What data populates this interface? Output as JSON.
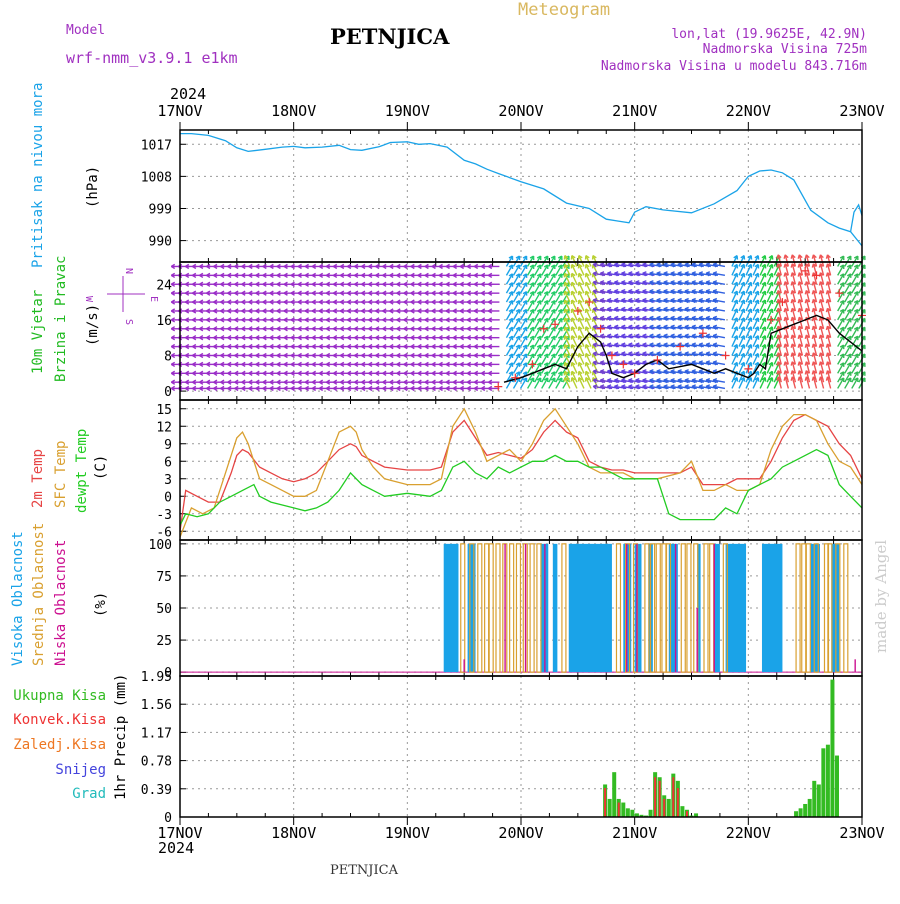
{
  "header": {
    "model_label": "Model",
    "model_name": "wrf-nmm_v3.9.1 e1km",
    "station": "PETNJICA",
    "title": "Meteogram",
    "coords": "lon,lat (19.9625E, 42.9N)",
    "elevation": "Nadmorska Visina 725m",
    "model_elevation": "Nadmorska Visina u modelu 843.716m",
    "year": "2024",
    "footer_station": "PETNJICA",
    "watermark": "made by Angel"
  },
  "colors": {
    "pressure": "#1aa3e8",
    "wind_label": "#22bb22",
    "wind_axis": "#a030c0",
    "temp2m": "#e64444",
    "sfc": "#d9a030",
    "dewpt": "#22cc22",
    "high_cloud": "#1aa3e8",
    "mid_cloud": "#d9a030",
    "low_cloud": "#cc1090",
    "total_precip": "#33bb22",
    "conv_precip": "#ee3333",
    "freezing": "#ee7722",
    "snow": "#4444dd",
    "hail": "#22bbbb",
    "frame": "#000000"
  },
  "chart_data": [
    {
      "type": "line",
      "id": "pressure",
      "ylabel": "Pritisak na nivou mora",
      "unit": "(hPa)",
      "ylim": [
        984,
        1021
      ],
      "yticks": [
        "990",
        "999",
        "1008",
        "1017"
      ],
      "ytick_values": [
        990,
        999,
        1008,
        1017
      ],
      "x_categories": [
        "17NOV",
        "18NOV",
        "19NOV",
        "20NOV",
        "21NOV",
        "22NOV",
        "23NOV"
      ],
      "grid": true,
      "series": [
        {
          "color": "#1aa3e8",
          "x": [
            0,
            0.1,
            0.25,
            0.4,
            0.5,
            0.6,
            0.75,
            0.9,
            1.0,
            1.1,
            1.25,
            1.4,
            1.5,
            1.6,
            1.75,
            1.85,
            2.0,
            2.1,
            2.2,
            2.35,
            2.5,
            2.6,
            2.7,
            2.8,
            3.0,
            3.2,
            3.4,
            3.6,
            3.75,
            3.85,
            3.95,
            4.0,
            4.1,
            4.25,
            4.5,
            4.7,
            4.9,
            5.0,
            5.1,
            5.2,
            5.3,
            5.4,
            5.55,
            5.7,
            5.8,
            5.9,
            6.0
          ],
          "y": [
            1020,
            1020,
            1019.5,
            1018,
            1016,
            1015,
            1015.6,
            1016.2,
            1016.4,
            1016,
            1016.2,
            1016.7,
            1015.5,
            1015.3,
            1016.3,
            1017.5,
            1017.7,
            1017,
            1017.2,
            1016.2,
            1012.5,
            1011.5,
            1010,
            1008.8,
            1006.5,
            1004.5,
            1000.5,
            999,
            996,
            995.5,
            995,
            998,
            999.5,
            998.6,
            997.8,
            1000.3,
            1004,
            1008,
            1009.5,
            1009.8,
            1009,
            1007,
            998.5,
            995,
            993.5,
            992.5,
            988.5
          ]
        },
        {
          "color": "#1aa3e8",
          "x": [
            5.9,
            5.93,
            5.97,
            6.0
          ],
          "y": [
            992.5,
            998,
            1000,
            997
          ]
        }
      ]
    },
    {
      "type": "line",
      "id": "wind",
      "ylabel": "10m Vjetar",
      "ylabel2": "Brzina i Pravac",
      "unit": "(m/s)",
      "compass": {
        "n": "N",
        "s": "S",
        "w": "W",
        "e": "E"
      },
      "ylim": [
        -2,
        29
      ],
      "yticks": [
        "0",
        "8",
        "16",
        "24"
      ],
      "ytick_values": [
        0,
        8,
        16,
        24
      ],
      "grid": true,
      "series": [
        {
          "name": "speed",
          "color": "#000000",
          "x": [
            2.85,
            3.0,
            3.1,
            3.2,
            3.3,
            3.4,
            3.5,
            3.6,
            3.7,
            3.75,
            3.8,
            3.9,
            4.0,
            4.1,
            4.2,
            4.3,
            4.5,
            4.6,
            4.7,
            4.8,
            4.9,
            5.0,
            5.05,
            5.1,
            5.15,
            5.2,
            5.3,
            5.4,
            5.5,
            5.6,
            5.7,
            5.8,
            5.9,
            6.0
          ],
          "y": [
            2,
            3,
            4,
            5,
            6,
            5,
            10,
            13,
            11,
            8,
            4,
            3,
            4,
            6,
            7,
            5,
            6,
            5,
            4,
            5,
            4,
            3,
            4,
            6,
            5,
            13,
            14,
            15,
            16,
            17,
            16,
            13,
            11,
            9
          ]
        },
        {
          "name": "gust",
          "color": "#ee3333",
          "x": [
            2.8,
            2.95,
            3.1,
            3.2,
            3.3,
            3.5,
            3.6,
            3.7,
            3.8,
            3.9,
            4.0,
            4.2,
            4.4,
            4.6,
            4.8,
            5.0,
            5.2,
            5.3,
            5.5,
            5.6,
            5.8,
            6.0
          ],
          "y": [
            1,
            3,
            6,
            14,
            15,
            18,
            20,
            14,
            8,
            6,
            4,
            7,
            10,
            13,
            8,
            5,
            16,
            20,
            27,
            26,
            22,
            17
          ]
        }
      ]
    },
    {
      "type": "line",
      "id": "temperature",
      "ylabels": [
        "2m Temp",
        "SFC Temp",
        "dewpt Temp"
      ],
      "unit": "(C)",
      "ylim": [
        -7.5,
        16.5
      ],
      "yticks": [
        "-6",
        "-3",
        "0",
        "3",
        "6",
        "9",
        "12",
        "15"
      ],
      "ytick_values": [
        -6,
        -3,
        0,
        3,
        6,
        9,
        12,
        15
      ],
      "grid": true,
      "series": [
        {
          "name": "2m Temp",
          "color": "#e64444",
          "x": [
            0,
            0.05,
            0.15,
            0.25,
            0.35,
            0.45,
            0.5,
            0.55,
            0.6,
            0.7,
            0.8,
            0.9,
            1.0,
            1.1,
            1.2,
            1.3,
            1.4,
            1.5,
            1.55,
            1.6,
            1.7,
            1.8,
            2.0,
            2.2,
            2.3,
            2.4,
            2.5,
            2.6,
            2.7,
            2.8,
            2.9,
            3.0,
            3.1,
            3.2,
            3.3,
            3.4,
            3.5,
            3.6,
            3.7,
            3.8,
            3.9,
            4.0,
            4.2,
            4.4,
            4.5,
            4.6,
            4.7,
            4.8,
            4.9,
            5.0,
            5.1,
            5.2,
            5.3,
            5.4,
            5.5,
            5.6,
            5.7,
            5.8,
            5.9,
            6.0
          ],
          "y": [
            -6,
            1,
            0,
            -1,
            -1,
            4,
            7,
            8,
            7.5,
            5,
            4,
            3,
            2.5,
            3,
            4,
            6,
            8,
            9,
            8.5,
            7,
            6,
            5,
            4.5,
            4.5,
            5,
            11,
            13,
            10,
            7,
            7.5,
            7,
            6.5,
            8,
            11,
            13,
            11,
            10,
            6,
            5,
            4.5,
            4.5,
            4,
            4,
            4,
            5,
            2,
            2,
            2,
            3,
            3,
            3,
            6,
            10,
            13,
            14,
            13,
            12,
            9,
            7,
            3
          ]
        },
        {
          "name": "SFC Temp",
          "color": "#d9a030",
          "x": [
            0,
            0.1,
            0.2,
            0.3,
            0.4,
            0.5,
            0.55,
            0.6,
            0.7,
            0.8,
            0.9,
            1.0,
            1.1,
            1.2,
            1.3,
            1.4,
            1.5,
            1.55,
            1.6,
            1.7,
            1.8,
            2.0,
            2.2,
            2.3,
            2.4,
            2.5,
            2.6,
            2.7,
            2.8,
            2.9,
            3.0,
            3.1,
            3.2,
            3.3,
            3.4,
            3.5,
            3.6,
            3.7,
            3.8,
            3.9,
            4.0,
            4.2,
            4.4,
            4.5,
            4.6,
            4.7,
            4.8,
            4.9,
            5.0,
            5.1,
            5.2,
            5.3,
            5.4,
            5.5,
            5.6,
            5.7,
            5.8,
            5.9,
            6.0
          ],
          "y": [
            -7,
            -2,
            -3,
            -2,
            4,
            10,
            11,
            9,
            3,
            2,
            1,
            0,
            0,
            1,
            6,
            11,
            12,
            11,
            8,
            5,
            3,
            2,
            2,
            3,
            12,
            15,
            11,
            6,
            7,
            8,
            6,
            9,
            13,
            15,
            12,
            9,
            5,
            4,
            4,
            4,
            3,
            3,
            4,
            6,
            1,
            1,
            2,
            1,
            1,
            2,
            8,
            12,
            14,
            14,
            13,
            9,
            6,
            5,
            2
          ]
        },
        {
          "name": "dewpt Temp",
          "color": "#22cc22",
          "x": [
            0,
            0.05,
            0.15,
            0.25,
            0.35,
            0.45,
            0.55,
            0.65,
            0.7,
            0.8,
            0.9,
            1.0,
            1.1,
            1.2,
            1.3,
            1.4,
            1.5,
            1.6,
            1.7,
            1.8,
            2.0,
            2.2,
            2.3,
            2.4,
            2.5,
            2.6,
            2.7,
            2.8,
            2.9,
            3.0,
            3.1,
            3.2,
            3.3,
            3.4,
            3.5,
            3.6,
            3.7,
            3.8,
            3.9,
            4.0,
            4.2,
            4.3,
            4.4,
            4.5,
            4.6,
            4.7,
            4.8,
            4.9,
            5.0,
            5.1,
            5.2,
            5.3,
            5.4,
            5.5,
            5.6,
            5.7,
            5.8,
            5.9,
            6.0
          ],
          "y": [
            -5,
            -3,
            -3.5,
            -3,
            -1,
            0,
            1,
            2,
            0,
            -1,
            -1.5,
            -2,
            -2.5,
            -2,
            -1,
            1,
            4,
            2,
            1,
            0,
            0.5,
            0,
            1,
            5,
            6,
            4,
            3,
            5,
            4,
            5,
            6,
            6,
            7,
            6,
            6,
            5,
            5,
            4,
            3,
            3,
            3,
            -3,
            -4,
            -4,
            -4,
            -4,
            -2,
            -3,
            1,
            2,
            3,
            5,
            6,
            7,
            8,
            7,
            2,
            0,
            -2
          ]
        }
      ]
    },
    {
      "type": "bar",
      "id": "cloud",
      "ylabels": [
        "Visoka Oblacnost",
        "Srednja Oblacnost",
        "Niska Oblacnost"
      ],
      "unit": "(%)",
      "ylim": [
        -3,
        103
      ],
      "yticks": [
        "0",
        "25",
        "50",
        "75",
        "100"
      ],
      "ytick_values": [
        0,
        25,
        50,
        75,
        100
      ],
      "grid": true,
      "series": [
        {
          "name": "Visoka Oblacnost",
          "color": "#1aa3e8",
          "intervals": [
            [
              2.32,
              2.45
            ],
            [
              2.53,
              2.6
            ],
            [
              3.18,
              3.24
            ],
            [
              3.28,
              3.32
            ],
            [
              3.42,
              3.8
            ],
            [
              3.9,
              3.97
            ],
            [
              4.0,
              4.06
            ],
            [
              4.12,
              4.16
            ],
            [
              4.3,
              4.38
            ],
            [
              4.55,
              4.58
            ],
            [
              4.7,
              4.75
            ],
            [
              4.8,
              4.98
            ],
            [
              5.12,
              5.3
            ],
            [
              5.55,
              5.63
            ],
            [
              5.73,
              5.8
            ]
          ],
          "values": [
            100,
            100,
            100,
            100,
            100,
            100,
            100,
            100,
            100,
            100,
            100,
            100,
            100,
            100,
            100
          ]
        },
        {
          "name": "Srednja Oblacnost",
          "color": "#d9a030",
          "stripes": [
            2.47,
            2.55,
            2.62,
            2.68,
            2.72,
            2.78,
            2.84,
            2.9,
            2.96,
            3.02,
            3.08,
            3.14,
            3.36,
            3.84,
            3.92,
            3.99,
            4.09,
            4.14,
            4.19,
            4.24,
            4.28,
            4.41,
            4.46,
            4.52,
            4.61,
            4.66,
            4.78,
            5.42,
            5.47,
            5.51,
            5.58,
            5.67,
            5.7,
            5.77,
            5.84
          ],
          "stripe_value": 100
        },
        {
          "name": "Niska Oblacnost",
          "color": "#cc1090",
          "stripes": [
            2.5,
            2.86,
            3.04,
            3.21,
            3.93,
            4.02,
            4.36,
            4.55,
            4.7,
            5.94
          ],
          "stripe_values": [
            10,
            100,
            100,
            100,
            100,
            100,
            100,
            50,
            100,
            10
          ]
        }
      ]
    },
    {
      "type": "bar",
      "id": "precip",
      "legend": [
        "Ukupna Kisa",
        "Konvek.Kisa",
        "Zaledj.Kisa",
        "Snijeg",
        "Grad"
      ],
      "ylabel": "1hr Precip (mm)",
      "ylim": [
        0,
        1.95
      ],
      "yticks": [
        "0",
        "0.39",
        "0.78",
        "1.17",
        "1.56",
        "1.95"
      ],
      "ytick_values": [
        0,
        0.39,
        0.78,
        1.17,
        1.56,
        1.95
      ],
      "x_categories": [
        "17NOV",
        "18NOV",
        "19NOV",
        "20NOV",
        "21NOV",
        "22NOV",
        "23NOV"
      ],
      "grid": true,
      "series": [
        {
          "name": "Ukupna Kisa",
          "color": "#33bb22",
          "x": [
            3.74,
            3.78,
            3.82,
            3.86,
            3.9,
            3.94,
            3.98,
            4.02,
            4.06,
            4.1,
            4.14,
            4.18,
            4.22,
            4.26,
            4.3,
            4.34,
            4.38,
            4.42,
            4.46,
            4.5,
            4.54,
            5.42,
            5.46,
            5.5,
            5.54,
            5.58,
            5.62,
            5.66,
            5.7,
            5.74,
            5.78
          ],
          "y": [
            0.45,
            0.25,
            0.62,
            0.25,
            0.2,
            0.12,
            0.1,
            0.05,
            0.03,
            0.02,
            0.1,
            0.62,
            0.55,
            0.3,
            0.25,
            0.6,
            0.5,
            0.15,
            0.1,
            0.02,
            0.05,
            0.08,
            0.12,
            0.18,
            0.25,
            0.5,
            0.45,
            0.95,
            1.0,
            1.9,
            0.85
          ]
        },
        {
          "name": "Konvek.Kisa",
          "color": "#ee3333",
          "x": [
            3.74,
            3.86,
            4.18,
            4.22,
            4.26,
            4.34,
            4.38,
            4.46
          ],
          "y": [
            0.4,
            0.2,
            0.55,
            0.5,
            0.25,
            0.55,
            0.4,
            0.08
          ]
        }
      ]
    }
  ]
}
